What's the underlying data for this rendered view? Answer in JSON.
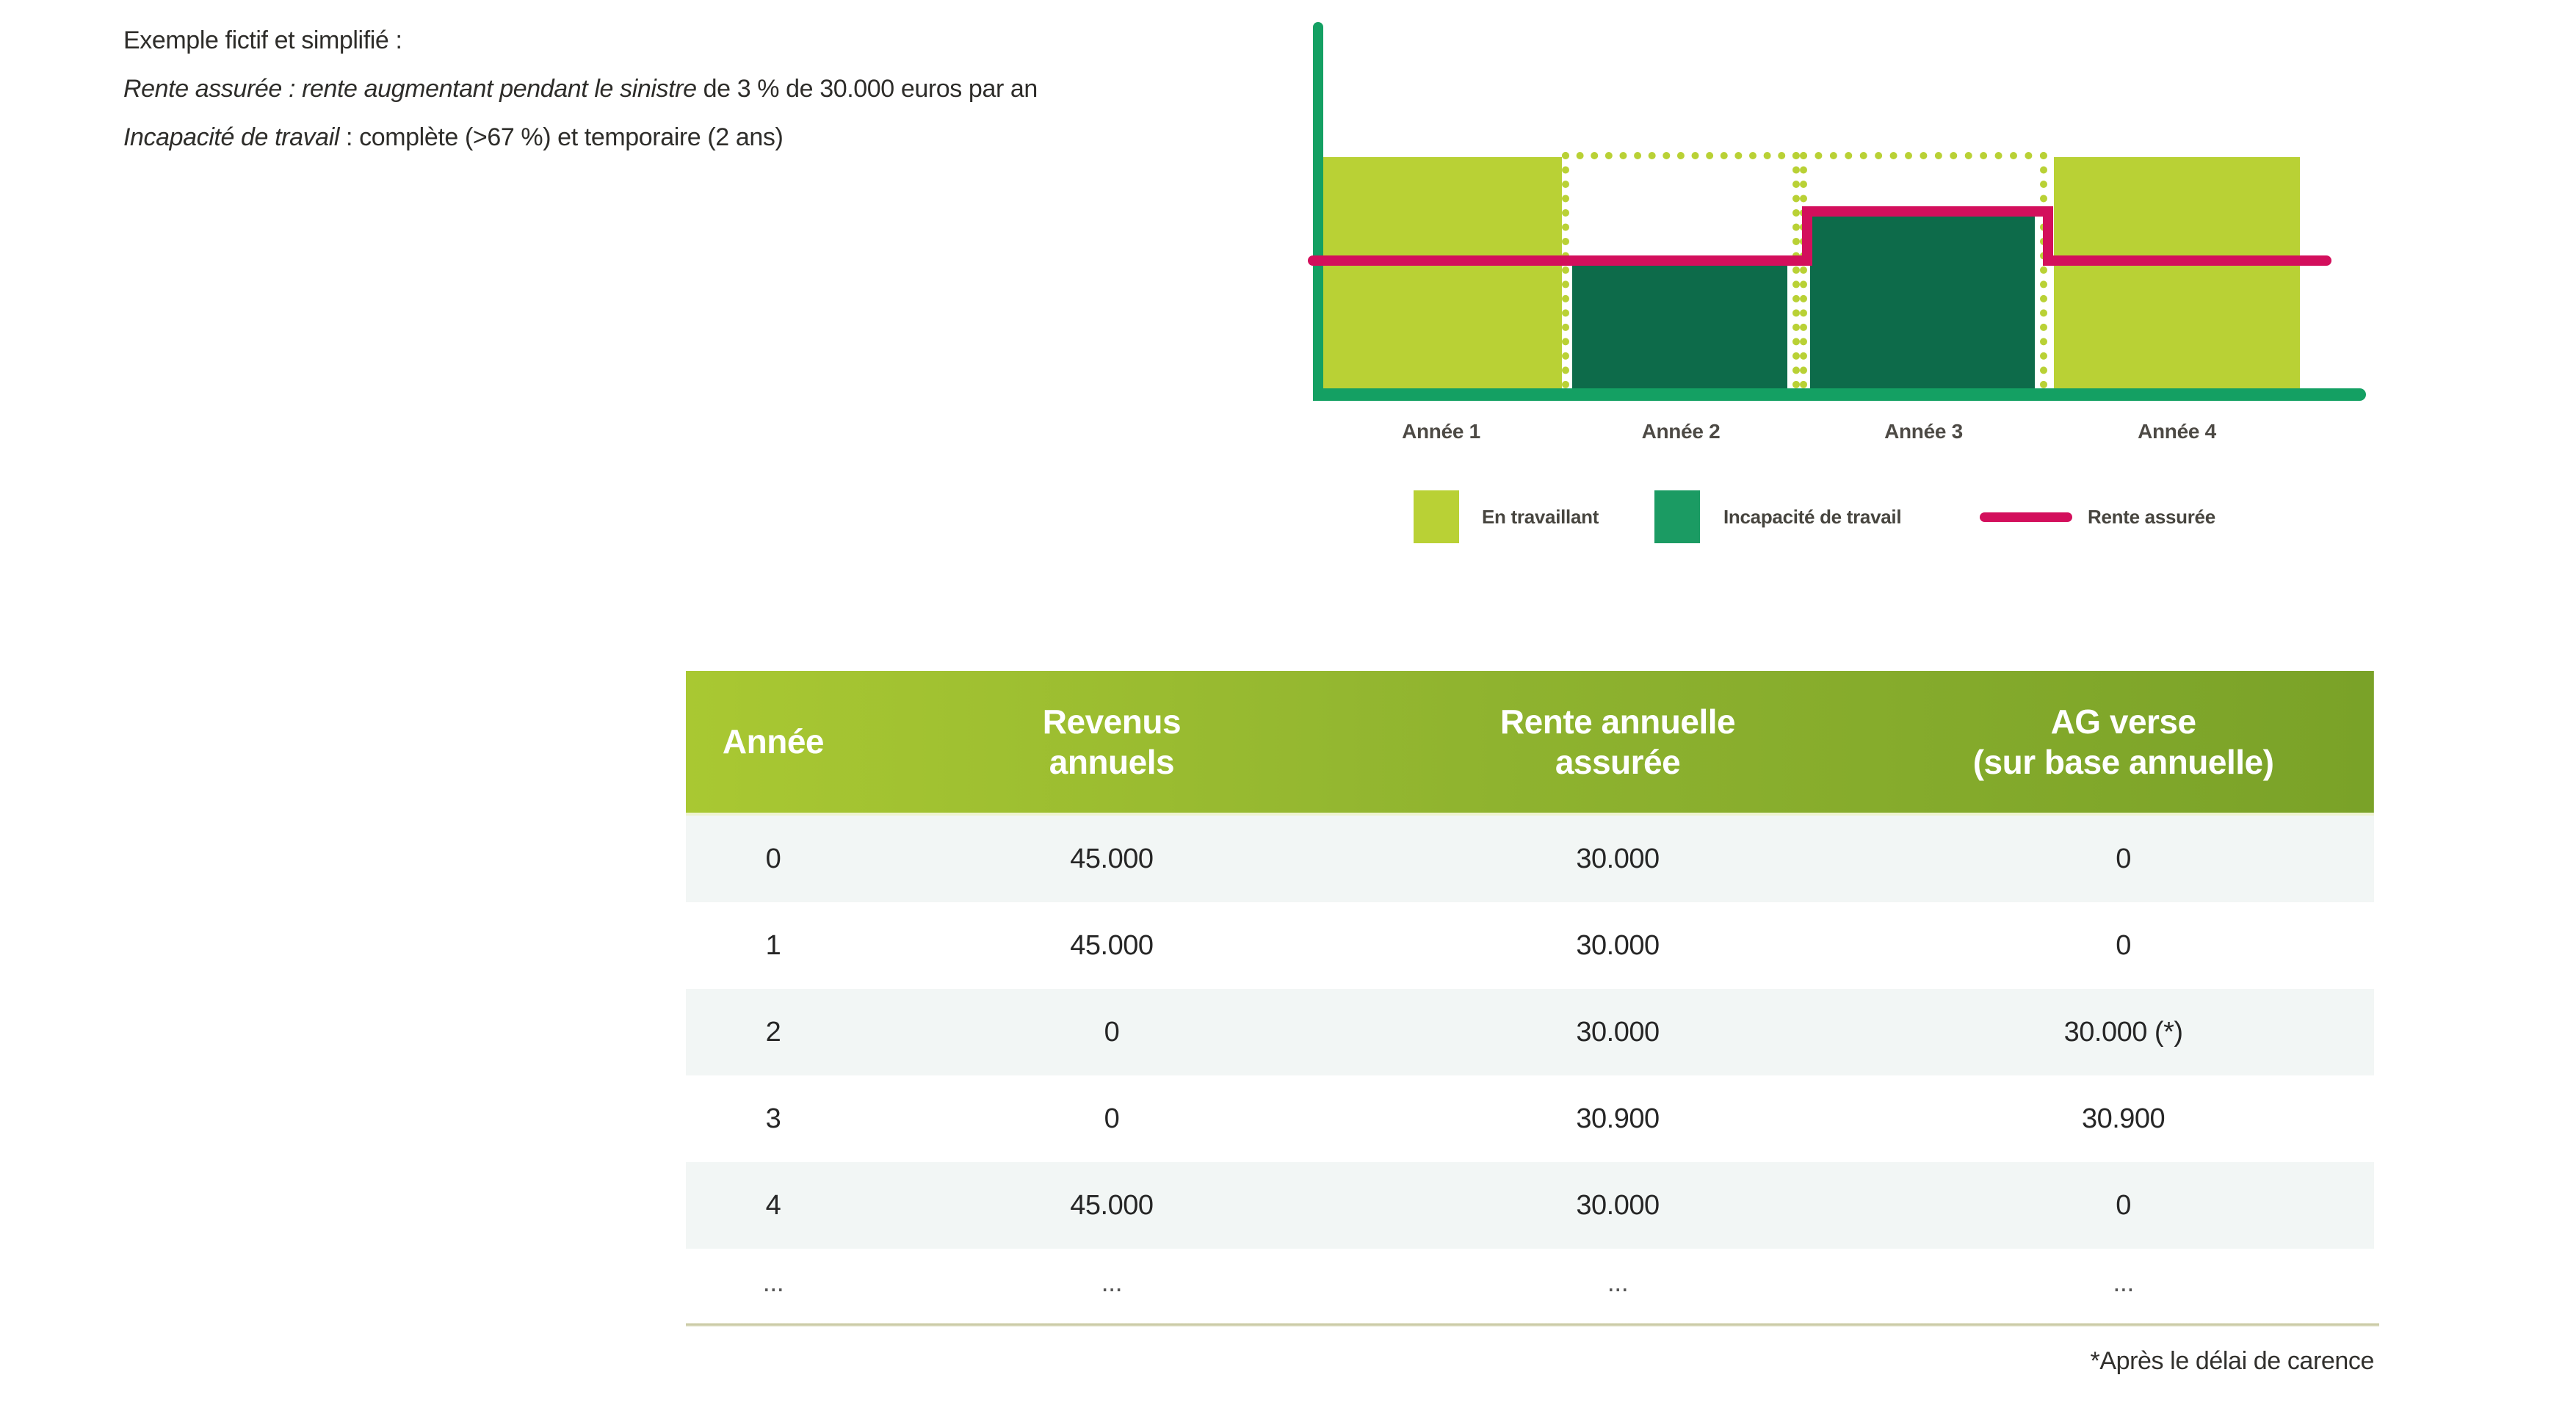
{
  "intro": {
    "line1": "Exemple fictif et simplifié :",
    "line2_italic": "Rente assurée : rente augmentant pendant le sinistre",
    "line2_regular": " de 3 % de 30.000 euros par an",
    "line3_italic": "Incapacité de travail",
    "line3_regular": " : complète (>67 %) et temporaire (2 ans)"
  },
  "chart_data": {
    "type": "area",
    "x_categories": [
      "Année 1",
      "Année 2",
      "Année 3",
      "Année 4"
    ],
    "bands": [
      {
        "year_label": "Année 1",
        "state": "working",
        "revenus_annuels": 45000,
        "rente_assuree": 30000
      },
      {
        "year_label": "Année 2",
        "state": "incapacite",
        "revenus_annuels": 0,
        "rente_assuree": 30000
      },
      {
        "year_label": "Année 3",
        "state": "incapacite",
        "revenus_annuels": 0,
        "rente_assuree": 30900
      },
      {
        "year_label": "Année 4",
        "state": "working",
        "revenus_annuels": 45000,
        "rente_assuree": 30000
      }
    ],
    "legend": [
      {
        "label": "En travaillant",
        "swatch": "square",
        "color": "#b9d135"
      },
      {
        "label": "Incapacité de travail",
        "swatch": "square",
        "color": "#1b9b63"
      },
      {
        "label": "Rente assurée",
        "swatch": "line",
        "color": "#d30f5c"
      }
    ],
    "axis": {
      "grid": false,
      "y_ticks": [],
      "x_axis_color": "#14a063"
    }
  },
  "table": {
    "headers": [
      {
        "line1": "Année",
        "line2": ""
      },
      {
        "line1": "Revenus",
        "line2": "annuels"
      },
      {
        "line1": "Rente annuelle",
        "line2": "assurée"
      },
      {
        "line1": "AG verse",
        "line2": "(sur base annuelle)"
      }
    ],
    "rows": [
      [
        "0",
        "45.000",
        "30.000",
        "0"
      ],
      [
        "1",
        "45.000",
        "30.000",
        "0"
      ],
      [
        "2",
        "0",
        "30.000",
        "30.000 (*)"
      ],
      [
        "3",
        "0",
        "30.900",
        "30.900"
      ],
      [
        "4",
        "45.000",
        "30.000",
        "0"
      ],
      [
        "...",
        "...",
        "...",
        "..."
      ]
    ],
    "footnote": "*Après le délai de carence"
  },
  "colors": {
    "light_green": "#b9d135",
    "dark_green": "#0d6b4a",
    "emerald": "#14a063",
    "legend_emerald": "#1b9b63",
    "pink": "#d30f5c",
    "header_gradient_start": "#a9c832",
    "header_gradient_end": "#7aa228",
    "row_alt": "#f2f6f5"
  }
}
